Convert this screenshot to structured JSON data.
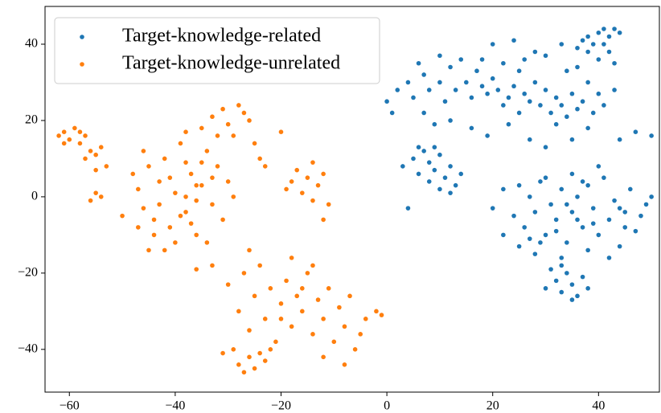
{
  "chart_data": {
    "type": "scatter",
    "xlim": [
      -64.6,
      51.5
    ],
    "ylim": [
      -51.2,
      49.9
    ],
    "xticks": [
      {
        "value": -60,
        "label": "−60"
      },
      {
        "value": -40,
        "label": "−40"
      },
      {
        "value": -20,
        "label": "−20"
      },
      0,
      20,
      40
    ],
    "yticks": [
      {
        "value": -40,
        "label": "−40"
      },
      {
        "value": -20,
        "label": "−20"
      },
      0,
      20,
      40
    ],
    "legend": "upper left",
    "series": [
      {
        "name": "Target-knowledge-related",
        "color": "#1f77b4",
        "x": [
          38,
          40,
          41,
          42,
          43,
          41,
          39,
          37,
          36,
          42,
          40,
          43,
          44,
          38,
          0,
          1,
          2,
          4,
          5,
          7,
          8,
          10,
          11,
          12,
          13,
          14,
          15,
          16,
          17,
          18,
          19,
          20,
          21,
          22,
          23,
          24,
          25,
          26,
          27,
          28,
          29,
          30,
          31,
          32,
          33,
          34,
          35,
          36,
          37,
          38,
          39,
          40,
          41,
          43,
          30,
          34,
          20,
          24,
          28,
          33,
          12,
          16,
          19,
          23,
          27,
          30,
          35,
          38,
          44,
          47,
          50,
          7,
          9,
          25,
          22,
          32,
          36,
          26,
          18,
          10,
          6,
          3,
          5,
          6,
          7,
          8,
          9,
          10,
          11,
          9,
          12,
          13,
          14,
          8,
          6,
          10,
          12,
          4,
          20,
          22,
          24,
          25,
          26,
          27,
          28,
          29,
          30,
          31,
          32,
          33,
          34,
          35,
          36,
          37,
          38,
          39,
          40,
          41,
          42,
          43,
          44,
          45,
          46,
          47,
          48,
          49,
          50,
          30,
          35,
          40,
          25,
          28,
          33,
          38,
          42,
          45,
          22,
          36,
          32,
          39,
          34,
          44,
          27,
          37,
          29,
          31,
          32,
          33,
          34,
          35,
          36,
          37,
          33,
          35,
          30,
          38
        ],
        "values": [
          42,
          43,
          44,
          42,
          44,
          40,
          40,
          41,
          39,
          38,
          36,
          35,
          43,
          38,
          25,
          22,
          28,
          30,
          26,
          32,
          28,
          30,
          25,
          34,
          28,
          36,
          30,
          26,
          33,
          29,
          27,
          31,
          28,
          35,
          26,
          29,
          33,
          27,
          25,
          30,
          24,
          28,
          22,
          26,
          24,
          21,
          27,
          23,
          25,
          30,
          22,
          27,
          24,
          28,
          37,
          33,
          40,
          41,
          38,
          40,
          20,
          18,
          16,
          19,
          15,
          13,
          15,
          18,
          15,
          17,
          16,
          22,
          19,
          22,
          24,
          19,
          34,
          36,
          36,
          37,
          35,
          8,
          10,
          6,
          12,
          9,
          7,
          11,
          5,
          13,
          8,
          3,
          6,
          4,
          13,
          2,
          1,
          -3,
          -3,
          2,
          -5,
          3,
          -8,
          0,
          -4,
          4,
          -10,
          -2,
          -6,
          2,
          -12,
          -4,
          0,
          -8,
          3,
          -3,
          -10,
          5,
          -6,
          -1,
          -13,
          -4,
          2,
          -9,
          -5,
          -2,
          0,
          5,
          6,
          8,
          -13,
          -15,
          -16,
          -14,
          -16,
          -8,
          -10,
          -6,
          -9,
          -7,
          -2,
          -3,
          -11,
          4,
          -12,
          -19,
          -22,
          -25,
          -20,
          -23,
          -26,
          -21,
          -18,
          -27,
          -24,
          -24
        ]
      },
      {
        "name": "Target-knowledge-unrelated",
        "color": "#ff7f0e",
        "x": [
          -62,
          -61,
          -60,
          -59,
          -58,
          -57,
          -56,
          -55,
          -54,
          -61,
          -58,
          -53,
          -55,
          -57,
          -55,
          -54,
          -50,
          -56,
          -48,
          -47,
          -46,
          -45,
          -44,
          -43,
          -42,
          -41,
          -40,
          -39,
          -38,
          -37,
          -36,
          -35,
          -34,
          -33,
          -32,
          -31,
          -30,
          -29,
          -38,
          -36,
          -40,
          -42,
          -44,
          -39,
          -37,
          -41,
          -35,
          -33,
          -34,
          -47,
          -45,
          -43,
          -46,
          -38,
          -36,
          -35,
          -33,
          -31,
          -30,
          -28,
          -27,
          -26,
          -29,
          -32,
          -25,
          -24,
          -23,
          -20,
          -38,
          -19,
          -18,
          -17,
          -16,
          -15,
          -14,
          -13,
          -12,
          -11,
          -12,
          -14,
          -30,
          -28,
          -27,
          -26,
          -25,
          -24,
          -23,
          -22,
          -21,
          -20,
          -19,
          -18,
          -17,
          -16,
          -15,
          -14,
          -13,
          -12,
          -11,
          -10,
          -9,
          -8,
          -7,
          -6,
          -5,
          -4,
          -2,
          -1,
          -18,
          -14,
          -20,
          -16,
          -22,
          -12,
          -8,
          -26,
          -33,
          -36,
          -28,
          -27,
          -26,
          -25,
          -24,
          -23,
          -29,
          -31
        ],
        "values": [
          16,
          17,
          15,
          18,
          14,
          16,
          12,
          11,
          13,
          14,
          17,
          8,
          7,
          10,
          1,
          0,
          -5,
          -1,
          6,
          2,
          -3,
          8,
          -6,
          4,
          10,
          -8,
          1,
          14,
          -4,
          6,
          -10,
          3,
          12,
          -2,
          8,
          -6,
          4,
          0,
          9,
          -1,
          -12,
          -14,
          -10,
          -5,
          -7,
          5,
          9,
          5,
          -12,
          -8,
          -14,
          -2,
          12,
          0,
          3,
          18,
          21,
          23,
          19,
          24,
          22,
          20,
          16,
          16,
          14,
          10,
          8,
          17,
          17,
          2,
          4,
          7,
          1,
          5,
          9,
          3,
          6,
          -2,
          -6,
          -1,
          -23,
          -30,
          -20,
          -35,
          -26,
          -18,
          -32,
          -24,
          -38,
          -28,
          -22,
          -34,
          -26,
          -30,
          -20,
          -36,
          -27,
          -32,
          -24,
          -38,
          -29,
          -34,
          -26,
          -40,
          -36,
          -32,
          -30,
          -31,
          -16,
          -18,
          -32,
          -24,
          -40,
          -42,
          -44,
          -14,
          -18,
          -19,
          -44,
          -46,
          -42,
          -45,
          -41,
          -43,
          -40,
          -41
        ]
      }
    ]
  }
}
